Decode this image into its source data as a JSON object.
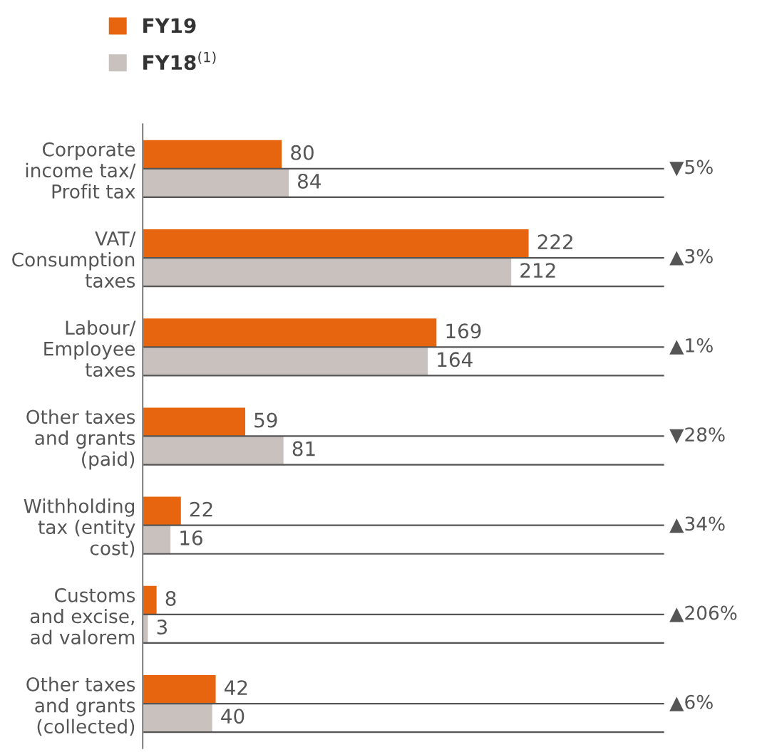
{
  "chart_data": {
    "type": "bar",
    "orientation": "horizontal",
    "categories": [
      "Corporate\nincome tax/\nProfit tax",
      "VAT/\nConsumption\ntaxes",
      "Labour/\nEmployee\ntaxes",
      "Other taxes\nand grants\n(paid)",
      "Withholding\ntax (entity\ncost)",
      "Customs\nand excise,\nad valorem",
      "Other taxes\nand grants\n(collected)"
    ],
    "series": [
      {
        "name": "FY19",
        "color": "#e8650f",
        "values": [
          80,
          222,
          169,
          59,
          22,
          8,
          42
        ]
      },
      {
        "name": "FY18$^{(1)}$",
        "color": "#c9c1be",
        "values": [
          84,
          212,
          164,
          81,
          16,
          3,
          40
        ]
      }
    ],
    "annotations": [
      "▼5%",
      "▲3%",
      "▲1%",
      "▼28%",
      "▲34%",
      "▲206%",
      "▲6%"
    ],
    "xlim": [
      0,
      300
    ],
    "data_labels": true,
    "legend": "top left",
    "tick_labels": "y",
    "grid": "y"
  }
}
